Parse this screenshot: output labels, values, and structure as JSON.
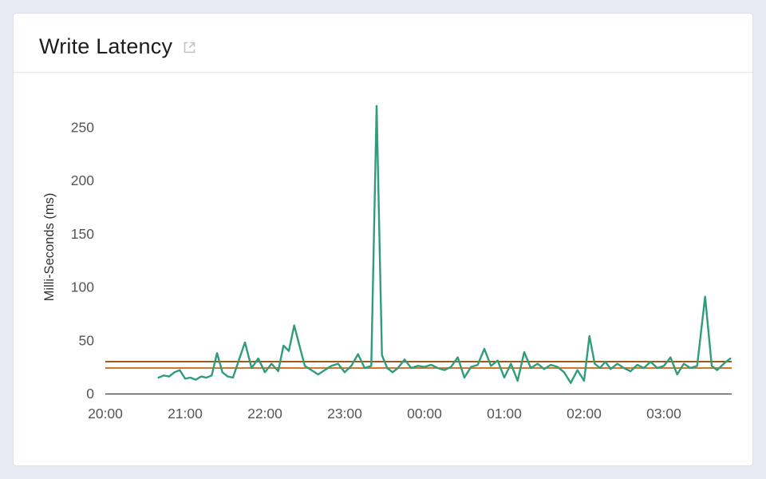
{
  "card": {
    "title": "Write Latency",
    "icons": {
      "external_link": "open-in-new-window"
    }
  },
  "chart_data": {
    "type": "line",
    "title": "Write Latency",
    "xlabel": "",
    "ylabel": "Milli-Seconds (ms)",
    "x_ticks": [
      "20:00",
      "21:00",
      "22:00",
      "23:00",
      "00:00",
      "01:00",
      "02:00",
      "03:00"
    ],
    "y_ticks": [
      0,
      50,
      100,
      150,
      200,
      250
    ],
    "ylim": [
      0,
      275
    ],
    "grid": false,
    "legend": "none",
    "colors": {
      "line": "#2f9c7c",
      "axis": "#3a3a3c",
      "tick_label": "#555555",
      "axis_title": "#333333"
    },
    "reference_lines": [
      {
        "name": "upper-threshold",
        "value": 30,
        "color": "#a3591c"
      },
      {
        "name": "lower-threshold",
        "value": 24,
        "color": "#cf7a2a"
      }
    ],
    "series": [
      {
        "name": "write-latency-ms",
        "points": [
          [
            "20:40",
            15
          ],
          [
            "20:44",
            17
          ],
          [
            "20:48",
            16
          ],
          [
            "20:52",
            20
          ],
          [
            "20:56",
            22
          ],
          [
            "21:00",
            14
          ],
          [
            "21:04",
            15
          ],
          [
            "21:08",
            13
          ],
          [
            "21:12",
            16
          ],
          [
            "21:16",
            15
          ],
          [
            "21:20",
            17
          ],
          [
            "21:24",
            38
          ],
          [
            "21:28",
            20
          ],
          [
            "21:32",
            16
          ],
          [
            "21:36",
            15
          ],
          [
            "21:40",
            30
          ],
          [
            "21:45",
            48
          ],
          [
            "21:50",
            24
          ],
          [
            "21:55",
            33
          ],
          [
            "22:00",
            20
          ],
          [
            "22:05",
            28
          ],
          [
            "22:10",
            21
          ],
          [
            "22:14",
            45
          ],
          [
            "22:18",
            40
          ],
          [
            "22:22",
            64
          ],
          [
            "22:26",
            45
          ],
          [
            "22:30",
            26
          ],
          [
            "22:35",
            22
          ],
          [
            "22:40",
            18
          ],
          [
            "22:45",
            22
          ],
          [
            "22:50",
            26
          ],
          [
            "22:55",
            28
          ],
          [
            "23:00",
            20
          ],
          [
            "23:05",
            26
          ],
          [
            "23:10",
            37
          ],
          [
            "23:15",
            24
          ],
          [
            "23:20",
            26
          ],
          [
            "23:24",
            270
          ],
          [
            "23:28",
            36
          ],
          [
            "23:32",
            24
          ],
          [
            "23:36",
            20
          ],
          [
            "23:40",
            24
          ],
          [
            "23:45",
            32
          ],
          [
            "23:50",
            24
          ],
          [
            "23:55",
            26
          ],
          [
            "00:00",
            25
          ],
          [
            "00:05",
            27
          ],
          [
            "00:10",
            24
          ],
          [
            "00:15",
            22
          ],
          [
            "00:20",
            25
          ],
          [
            "00:25",
            34
          ],
          [
            "00:30",
            15
          ],
          [
            "00:35",
            25
          ],
          [
            "00:40",
            27
          ],
          [
            "00:45",
            42
          ],
          [
            "00:50",
            26
          ],
          [
            "00:55",
            31
          ],
          [
            "01:00",
            15
          ],
          [
            "01:05",
            28
          ],
          [
            "01:10",
            12
          ],
          [
            "01:15",
            39
          ],
          [
            "01:20",
            24
          ],
          [
            "01:25",
            28
          ],
          [
            "01:30",
            23
          ],
          [
            "01:35",
            27
          ],
          [
            "01:40",
            25
          ],
          [
            "01:45",
            20
          ],
          [
            "01:50",
            10
          ],
          [
            "01:55",
            22
          ],
          [
            "02:00",
            12
          ],
          [
            "02:04",
            54
          ],
          [
            "02:08",
            28
          ],
          [
            "02:12",
            24
          ],
          [
            "02:16",
            30
          ],
          [
            "02:20",
            23
          ],
          [
            "02:25",
            28
          ],
          [
            "02:30",
            24
          ],
          [
            "02:35",
            21
          ],
          [
            "02:40",
            27
          ],
          [
            "02:45",
            24
          ],
          [
            "02:50",
            30
          ],
          [
            "02:55",
            24
          ],
          [
            "03:00",
            26
          ],
          [
            "03:05",
            34
          ],
          [
            "03:10",
            18
          ],
          [
            "03:15",
            28
          ],
          [
            "03:20",
            24
          ],
          [
            "03:25",
            26
          ],
          [
            "03:31",
            91
          ],
          [
            "03:36",
            26
          ],
          [
            "03:40",
            22
          ],
          [
            "03:45",
            28
          ],
          [
            "03:50",
            33
          ]
        ]
      }
    ]
  }
}
